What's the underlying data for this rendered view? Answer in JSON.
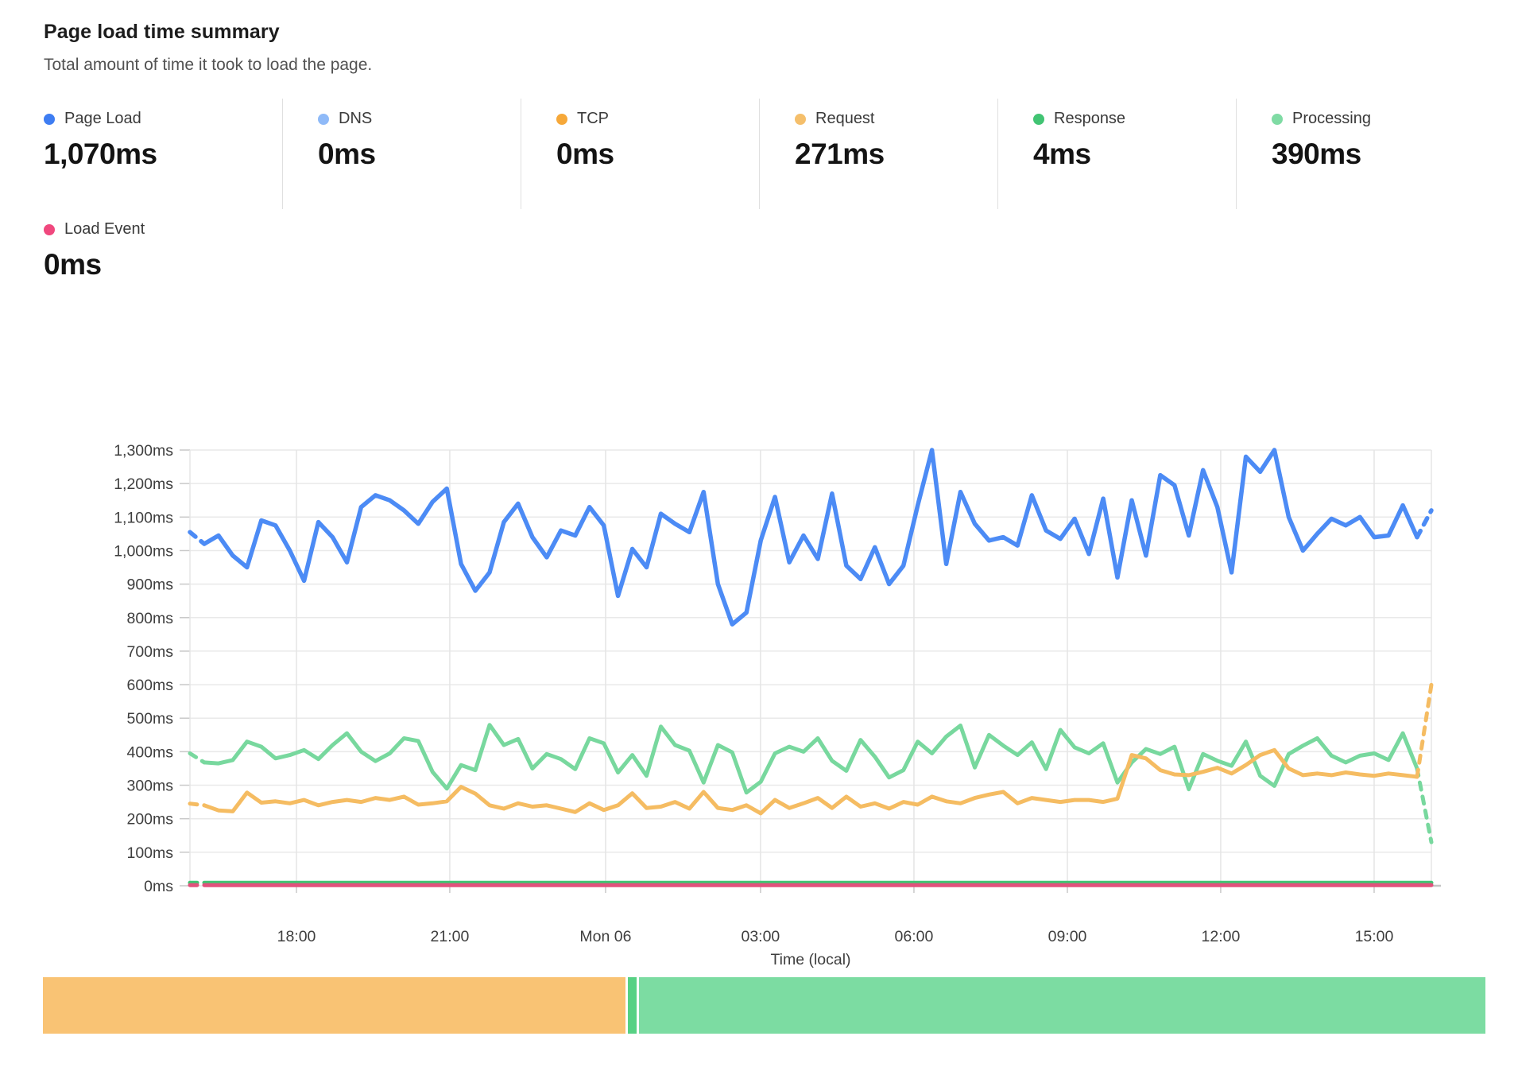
{
  "header": {
    "title": "Page load time summary",
    "subtitle": "Total amount of time it took to load the page."
  },
  "metrics": {
    "row1": [
      {
        "label": "Page Load",
        "value": "1,070ms",
        "color": "#3E7DF2"
      },
      {
        "label": "DNS",
        "value": "0ms",
        "color": "#8FBAF8"
      },
      {
        "label": "TCP",
        "value": "0ms",
        "color": "#F6A839"
      },
      {
        "label": "Request",
        "value": "271ms",
        "color": "#F5BF6B"
      },
      {
        "label": "Response",
        "value": "4ms",
        "color": "#41C473"
      },
      {
        "label": "Processing",
        "value": "390ms",
        "color": "#7FDBA4"
      }
    ],
    "row2": [
      {
        "label": "Load Event",
        "value": "0ms",
        "color": "#F0487E"
      }
    ]
  },
  "chart_data": {
    "type": "line",
    "y_axis": {
      "unit": "ms",
      "min": 0,
      "max": 1300,
      "step": 100,
      "tick_labels": [
        "0ms",
        "100ms",
        "200ms",
        "300ms",
        "400ms",
        "500ms",
        "600ms",
        "700ms",
        "800ms",
        "900ms",
        "1,000ms",
        "1,100ms",
        "1,200ms",
        "1,300ms"
      ],
      "grid": true
    },
    "x_axis": {
      "label": "Time (local)",
      "ticks": [
        {
          "label": "18:00",
          "pos": 0.0858
        },
        {
          "label": "21:00",
          "pos": 0.2093
        },
        {
          "label": "Mon 06",
          "pos": 0.3348
        },
        {
          "label": "03:00",
          "pos": 0.4596
        },
        {
          "label": "06:00",
          "pos": 0.5832
        },
        {
          "label": "09:00",
          "pos": 0.7068
        },
        {
          "label": "12:00",
          "pos": 0.8303
        },
        {
          "label": "15:00",
          "pos": 0.9539
        }
      ]
    },
    "series": [
      {
        "name": "Page Load",
        "color": "#4C8BF5",
        "stroke_width": 5.5,
        "dash_first": 1,
        "dash_last": 1,
        "values": [
          1055,
          1020,
          1045,
          985,
          950,
          1090,
          1075,
          1000,
          910,
          1085,
          1040,
          965,
          1130,
          1165,
          1150,
          1120,
          1080,
          1145,
          1185,
          960,
          880,
          935,
          1085,
          1140,
          1040,
          980,
          1060,
          1045,
          1130,
          1075,
          865,
          1005,
          950,
          1110,
          1080,
          1055,
          1175,
          900,
          780,
          815,
          1030,
          1160,
          965,
          1045,
          975,
          1170,
          955,
          915,
          1010,
          900,
          955,
          1135,
          1300,
          960,
          1175,
          1080,
          1030,
          1040,
          1015,
          1165,
          1060,
          1035,
          1095,
          990,
          1155,
          920,
          1150,
          985,
          1225,
          1195,
          1045,
          1240,
          1130,
          935,
          1280,
          1235,
          1300,
          1100,
          1000,
          1050,
          1095,
          1075,
          1100,
          1040,
          1045,
          1135,
          1040,
          1120
        ]
      },
      {
        "name": "Processing",
        "color": "#78D89E",
        "stroke_width": 5,
        "dash_first": 1,
        "dash_last": 1,
        "values": [
          395,
          368,
          365,
          375,
          430,
          415,
          380,
          390,
          405,
          378,
          420,
          455,
          400,
          372,
          395,
          440,
          432,
          340,
          290,
          360,
          345,
          480,
          420,
          438,
          350,
          393,
          378,
          348,
          440,
          425,
          338,
          390,
          328,
          475,
          420,
          403,
          308,
          420,
          398,
          278,
          310,
          395,
          415,
          400,
          440,
          373,
          343,
          435,
          385,
          323,
          345,
          430,
          395,
          445,
          478,
          353,
          450,
          418,
          390,
          428,
          348,
          465,
          413,
          395,
          425,
          308,
          368,
          408,
          393,
          415,
          288,
          393,
          373,
          358,
          430,
          328,
          298,
          393,
          418,
          440,
          388,
          368,
          388,
          395,
          375,
          455,
          350,
          130
        ]
      },
      {
        "name": "Request",
        "color": "#F5BC62",
        "stroke_width": 5,
        "dash_first": 1,
        "dash_last": 1,
        "values": [
          245,
          240,
          225,
          222,
          278,
          248,
          252,
          246,
          256,
          240,
          250,
          256,
          250,
          262,
          256,
          266,
          242,
          246,
          252,
          295,
          275,
          240,
          230,
          246,
          236,
          240,
          230,
          220,
          246,
          226,
          240,
          276,
          232,
          236,
          250,
          230,
          280,
          232,
          226,
          240,
          216,
          256,
          232,
          246,
          262,
          232,
          266,
          236,
          246,
          230,
          250,
          242,
          266,
          252,
          246,
          262,
          272,
          280,
          246,
          262,
          256,
          250,
          256,
          256,
          250,
          260,
          390,
          380,
          345,
          332,
          330,
          340,
          352,
          335,
          360,
          390,
          405,
          350,
          330,
          335,
          330,
          338,
          332,
          328,
          335,
          330,
          325,
          600
        ]
      },
      {
        "name": "Response",
        "color": "#41C473",
        "stroke_width": 5,
        "dash_first": 1,
        "dash_last": 0,
        "constant": 9,
        "count": 88
      },
      {
        "name": "Load Event",
        "color": "#E2517C",
        "stroke_width": 5,
        "dash_first": 1,
        "dash_last": 0,
        "constant": 2,
        "count": 88
      }
    ],
    "legend_position": "top"
  },
  "status_bar": {
    "segments": [
      {
        "name": "segment-orange",
        "color": "#F9C374",
        "percent": 40.4
      },
      {
        "name": "segment-green-sliver",
        "color": "#57D184",
        "percent": 0.6
      },
      {
        "name": "segment-green",
        "color": "#7CDCA2",
        "percent": 59.0
      }
    ]
  }
}
